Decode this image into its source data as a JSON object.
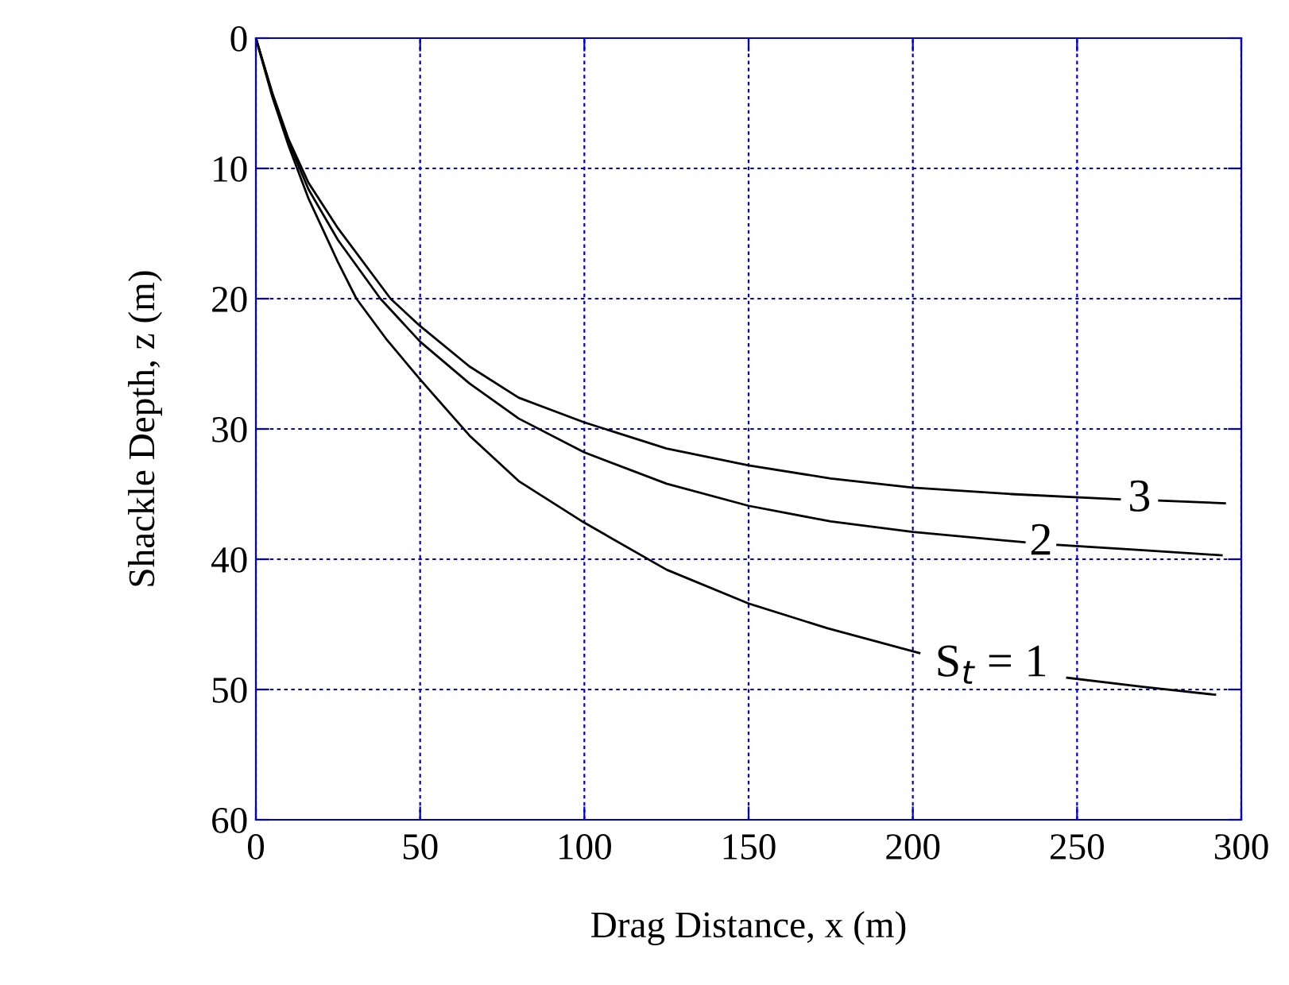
{
  "chart_data": {
    "type": "line",
    "xlabel": "Drag Distance, x (m)",
    "ylabel": "Shackle Depth, z (m)",
    "xlim": [
      0,
      300
    ],
    "xticks": [
      0,
      50,
      100,
      150,
      200,
      250,
      300
    ],
    "ylim": [
      60,
      0
    ],
    "yticks": [
      0,
      10,
      20,
      30,
      40,
      50,
      60
    ],
    "grid": true,
    "line_style": "solid",
    "marker": "none",
    "series": [
      {
        "name": "S$_{t}$ = 1",
        "color": "#000000",
        "x": [
          0,
          5,
          10,
          16,
          25,
          30.6,
          40,
          50,
          65,
          80,
          100,
          125,
          150,
          174,
          202,
          224,
          247,
          270,
          292
        ],
        "values": [
          0,
          4.5,
          8.3,
          12.3,
          17.2,
          20,
          23.2,
          26.2,
          30.5,
          34,
          37.2,
          40.8,
          43.4,
          45.3,
          47.2,
          null,
          49.1,
          49.8,
          50.4
        ]
      },
      {
        "name": "2",
        "color": "#000000",
        "x": [
          0,
          5,
          10,
          16,
          25,
          37.9,
          50,
          65,
          80,
          100,
          125,
          150,
          175,
          200,
          234,
          239,
          244,
          270,
          294
        ],
        "values": [
          0,
          4.3,
          8,
          11.6,
          15.5,
          20,
          23.3,
          26.5,
          29.2,
          31.8,
          34.2,
          35.9,
          37.1,
          37.9,
          38.7,
          null,
          38.9,
          39.3,
          39.7
        ]
      },
      {
        "name": "3",
        "color": "#000000",
        "x": [
          0,
          5,
          10,
          16,
          25,
          41,
          50,
          65,
          80,
          100,
          125,
          150,
          175,
          200,
          230,
          263,
          269,
          275,
          295
        ],
        "values": [
          0,
          4.2,
          7.8,
          11.1,
          14.6,
          20,
          22.1,
          25.2,
          27.6,
          29.5,
          31.5,
          32.8,
          33.8,
          34.5,
          35,
          35.4,
          null,
          35.5,
          35.7
        ]
      }
    ]
  }
}
